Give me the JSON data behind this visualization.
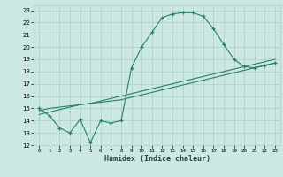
{
  "xlabel": "Humidex (Indice chaleur)",
  "bg_color": "#cce8e2",
  "line_color": "#2a7d6e",
  "grid_color": "#aacfc8",
  "xlim": [
    -0.5,
    23.5
  ],
  "ylim": [
    12,
    23.4
  ],
  "xticks": [
    0,
    1,
    2,
    3,
    4,
    5,
    6,
    7,
    8,
    9,
    10,
    11,
    12,
    13,
    14,
    15,
    16,
    17,
    18,
    19,
    20,
    21,
    22,
    23
  ],
  "yticks": [
    12,
    13,
    14,
    15,
    16,
    17,
    18,
    19,
    20,
    21,
    22,
    23
  ],
  "curve1_x": [
    0,
    1,
    2,
    3,
    4,
    5,
    6,
    7,
    8,
    9,
    10,
    11,
    12,
    13,
    14,
    15,
    16,
    17,
    18,
    19,
    20,
    21,
    22,
    23
  ],
  "curve1_y": [
    15.0,
    14.4,
    13.4,
    13.0,
    14.1,
    12.2,
    14.0,
    13.8,
    14.0,
    18.3,
    20.0,
    21.2,
    22.4,
    22.7,
    22.8,
    22.8,
    22.5,
    21.5,
    20.2,
    19.0,
    18.4,
    18.3,
    18.5,
    18.7
  ],
  "curve2_x": [
    0,
    1,
    2,
    3,
    4,
    5,
    6,
    7,
    8,
    9,
    10,
    11,
    12,
    13,
    14,
    15,
    16,
    17,
    18,
    19,
    20,
    21,
    22,
    23
  ],
  "curve2_y": [
    14.5,
    14.7,
    14.9,
    15.1,
    15.3,
    15.4,
    15.6,
    15.8,
    16.0,
    16.2,
    16.4,
    16.6,
    16.8,
    17.0,
    17.2,
    17.4,
    17.6,
    17.8,
    18.0,
    18.2,
    18.4,
    18.6,
    18.8,
    19.0
  ],
  "curve3_x": [
    0,
    1,
    2,
    3,
    4,
    5,
    6,
    7,
    8,
    9,
    10,
    11,
    12,
    13,
    14,
    15,
    16,
    17,
    18,
    19,
    20,
    21,
    22,
    23
  ],
  "curve3_y": [
    14.8,
    15.0,
    15.1,
    15.2,
    15.3,
    15.4,
    15.5,
    15.6,
    15.7,
    15.9,
    16.1,
    16.3,
    16.5,
    16.7,
    16.9,
    17.1,
    17.3,
    17.5,
    17.7,
    17.9,
    18.1,
    18.3,
    18.5,
    18.7
  ]
}
